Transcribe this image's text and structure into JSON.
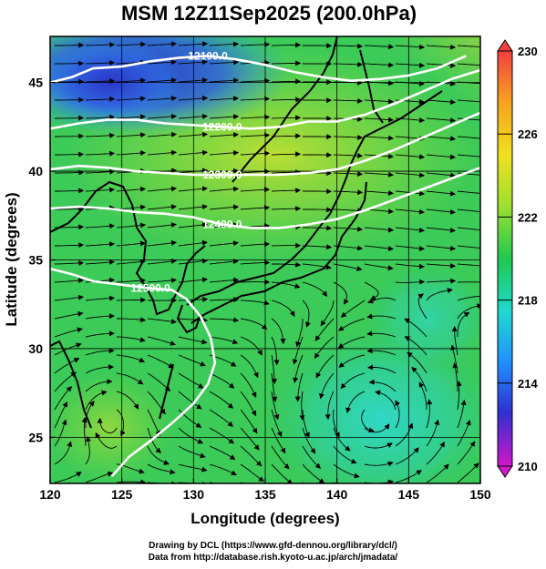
{
  "title": "MSM 12Z11Sep2025 (200.0hPa)",
  "xlabel": "Longitude (degrees)",
  "ylabel": "Latitude  (degrees)",
  "x_ticks": [
    "120",
    "125",
    "130",
    "135",
    "140",
    "145",
    "150"
  ],
  "y_ticks": [
    "25",
    "30",
    "35",
    "40",
    "45"
  ],
  "colorbar": {
    "labels": [
      "230",
      "226",
      "222",
      "218",
      "214",
      "210"
    ],
    "range": [
      210,
      230
    ],
    "colors": [
      "#d018c8",
      "#3030d0",
      "#2090ff",
      "#20d8d0",
      "#20c850",
      "#a0e030",
      "#f0e020",
      "#f8a020",
      "#f04040"
    ]
  },
  "contour_labels": [
    "12100.0",
    "12200.0",
    "12300.0",
    "12400.0",
    "12500.0"
  ],
  "credit": {
    "line1": "Drawing by DCL (https://www.gfd-dennou.org/library/dcl/)",
    "line2": "Data from http://database.rish.kyoto-u.ac.jp/arch/jmadata/"
  },
  "chart_data": {
    "type": "heatmap",
    "title": "MSM 12Z11Sep2025 (200.0hPa)",
    "xlabel": "Longitude (degrees)",
    "ylabel": "Latitude  (degrees)",
    "xlim": [
      120,
      150
    ],
    "ylim": [
      22.4,
      47.6
    ],
    "x_ticks": [
      120,
      125,
      130,
      135,
      140,
      145,
      150
    ],
    "y_ticks": [
      25,
      30,
      35,
      40,
      45
    ],
    "grid": true,
    "colorbar_range": [
      210,
      230
    ],
    "colorbar_ticks": [
      230,
      226,
      222,
      218,
      214,
      210
    ],
    "contours": [
      {
        "label": "12100.0",
        "points": [
          [
            120,
            45.0
          ],
          [
            121.5,
            45.3
          ],
          [
            123,
            45.8
          ],
          [
            125,
            45.9
          ],
          [
            127,
            46.2
          ],
          [
            129,
            46.4
          ],
          [
            131,
            46.5
          ],
          [
            133,
            46.3
          ],
          [
            135,
            46.0
          ],
          [
            137,
            45.6
          ],
          [
            139,
            45.3
          ],
          [
            141,
            45.1
          ],
          [
            143,
            45.2
          ],
          [
            145,
            45.4
          ],
          [
            147,
            45.8
          ],
          [
            149,
            46.5
          ]
        ]
      },
      {
        "label": "12200.0",
        "points": [
          [
            120,
            42.4
          ],
          [
            122,
            42.7
          ],
          [
            124,
            42.9
          ],
          [
            126,
            42.9
          ],
          [
            128,
            42.7
          ],
          [
            130,
            42.6
          ],
          [
            132,
            42.5
          ],
          [
            134,
            42.4
          ],
          [
            136,
            42.5
          ],
          [
            138,
            42.8
          ],
          [
            140,
            42.8
          ],
          [
            142,
            43.2
          ],
          [
            144,
            43.8
          ],
          [
            146,
            44.5
          ],
          [
            148,
            45.2
          ],
          [
            150,
            45.7
          ]
        ]
      },
      {
        "label": "12300.0",
        "points": [
          [
            120,
            40.1
          ],
          [
            122,
            40.3
          ],
          [
            124,
            40.2
          ],
          [
            126,
            40.0
          ],
          [
            128,
            39.9
          ],
          [
            130,
            39.8
          ],
          [
            132,
            39.8
          ],
          [
            134,
            39.8
          ],
          [
            136,
            39.8
          ],
          [
            138,
            39.9
          ],
          [
            140,
            40.1
          ],
          [
            142,
            40.6
          ],
          [
            144,
            41.2
          ],
          [
            146,
            41.9
          ],
          [
            148,
            42.6
          ],
          [
            150,
            43.3
          ]
        ]
      },
      {
        "label": "12400.0",
        "points": [
          [
            120,
            37.9
          ],
          [
            122,
            38.0
          ],
          [
            124,
            37.9
          ],
          [
            126,
            37.7
          ],
          [
            128,
            37.6
          ],
          [
            130,
            37.4
          ],
          [
            132,
            37.0
          ],
          [
            134,
            36.8
          ],
          [
            136,
            36.8
          ],
          [
            138,
            37.0
          ],
          [
            140,
            37.3
          ],
          [
            142,
            37.8
          ],
          [
            144,
            38.4
          ],
          [
            146,
            39.0
          ],
          [
            148,
            39.6
          ],
          [
            150,
            40.2
          ]
        ]
      },
      {
        "label": "12500.0",
        "points": [
          [
            120,
            34.5
          ],
          [
            121.5,
            34.2
          ],
          [
            123,
            33.8
          ],
          [
            125,
            33.6
          ],
          [
            127,
            33.4
          ],
          [
            128.5,
            33.3
          ],
          [
            129.5,
            32.8
          ],
          [
            130.5,
            31.8
          ],
          [
            131.2,
            30.6
          ],
          [
            131.5,
            29.2
          ],
          [
            131.0,
            28.0
          ],
          [
            130.0,
            26.9
          ],
          [
            128.5,
            25.8
          ],
          [
            127.0,
            24.8
          ],
          [
            125.5,
            23.9
          ],
          [
            124.3,
            22.8
          ]
        ]
      }
    ]
  }
}
